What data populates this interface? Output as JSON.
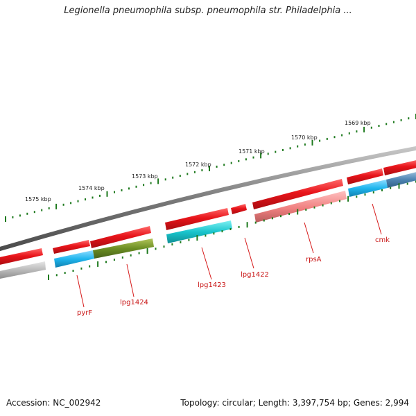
{
  "title": "Legionella pneumophila subsp. pneumophila str. Philadelphia ...",
  "footer": {
    "accession": "Accession: NC_002942",
    "summary": "Topology: circular; Length: 3,397,754 bp; Genes: 2,994"
  },
  "colors": {
    "forward_cds": "#e8141a",
    "cog_cyan": "#19c4cc",
    "cog_blue": "#1fb6ee",
    "cog_olive": "#6b8e23",
    "cog_pink": "#f08080",
    "cog_gray": "#b8b8b8",
    "backbone": "#777777",
    "tick": "#1e7a1e",
    "label": "#c81414"
  },
  "kbp_labels": [
    "1575 kbp",
    "1574 kbp",
    "1573 kbp",
    "1572 kbp",
    "1571 kbp",
    "1570 kbp",
    "1569 kbp"
  ],
  "genes": [
    "pyrF",
    "lpg1424",
    "lpg1423",
    "lpg1422",
    "rpsA",
    "cmk"
  ]
}
